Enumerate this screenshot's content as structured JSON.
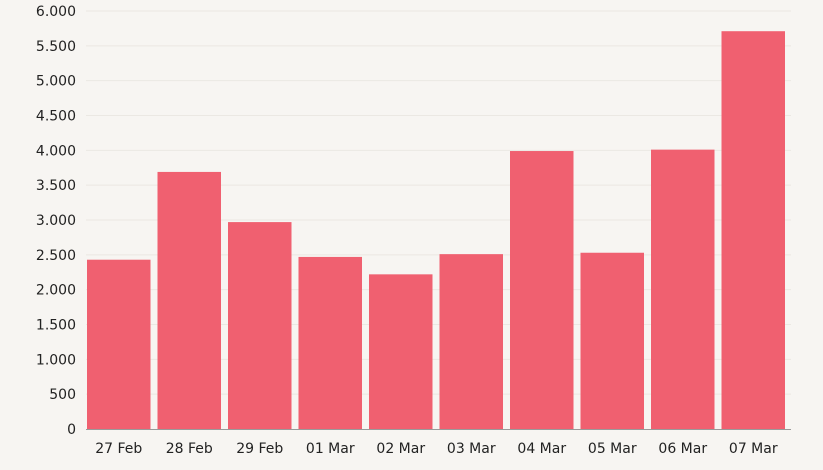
{
  "chart_data": {
    "type": "bar",
    "title": "",
    "xlabel": "",
    "ylabel": "",
    "categories": [
      "27 Feb",
      "28 Feb",
      "29 Feb",
      "01 Mar",
      "02 Mar",
      "03 Mar",
      "04 Mar",
      "05 Mar",
      "06 Mar",
      "07 Mar"
    ],
    "values": [
      2430,
      3690,
      2970,
      2470,
      2220,
      2510,
      3990,
      2530,
      4010,
      5710
    ],
    "ylim": [
      0,
      6000
    ],
    "yticks": [
      0,
      500,
      1000,
      1500,
      2000,
      2500,
      3000,
      3500,
      4000,
      4500,
      5000,
      5500,
      6000
    ],
    "ytick_labels": [
      "0",
      "500",
      "1.000",
      "1.500",
      "2.000",
      "2.500",
      "3.000",
      "3.500",
      "4.000",
      "4.500",
      "5.000",
      "5.500",
      "6.000"
    ],
    "grid": true,
    "legend": "none",
    "bar_color": "#f06070"
  }
}
